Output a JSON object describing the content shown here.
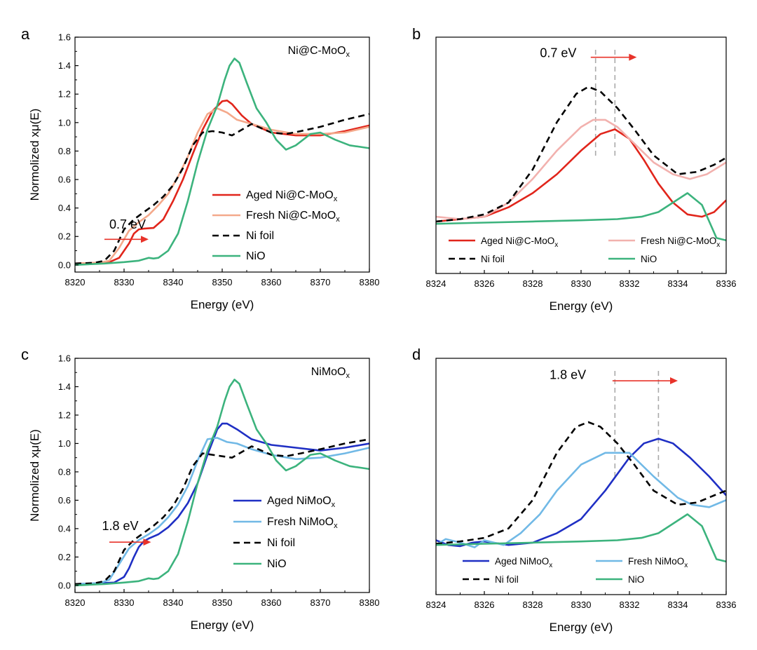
{
  "chart_data": [
    {
      "id": "a",
      "panel_label": "a",
      "type": "line",
      "title": "Ni@C-MoOx",
      "title_main": "Ni@C-MoO",
      "title_sub": "x",
      "xlabel": "Energy (eV)",
      "ylabel": "Normolized xμ(E)",
      "xlim": [
        8320,
        8380
      ],
      "ylim": [
        -0.05,
        1.6
      ],
      "xticks": [
        "8320",
        "8330",
        "8340",
        "8350",
        "8360",
        "8370",
        "8380"
      ],
      "yticks": [
        "0.0",
        "0.2",
        "0.4",
        "0.6",
        "0.8",
        "1.0",
        "1.2",
        "1.4",
        "1.6"
      ],
      "annotation": {
        "text": "0.7 eV",
        "color": "#e8332a",
        "x": 8327,
        "y": 0.255,
        "arrow_x": [
          8326,
          8335
        ],
        "arrow_y": 0.18
      },
      "series": [
        {
          "name": "Aged Ni@C-MoOx",
          "label_main": "Aged Ni@C-MoO",
          "label_sub": "x",
          "color": "#e1251b",
          "dash": false,
          "x": [
            8320,
            8325,
            8327,
            8329,
            8331,
            8332,
            8333,
            8334,
            8336,
            8338,
            8340,
            8342,
            8344,
            8346,
            8348,
            8350,
            8351,
            8352,
            8354,
            8356,
            8360,
            8365,
            8370,
            8375,
            8380
          ],
          "y": [
            0.01,
            0.015,
            0.02,
            0.05,
            0.15,
            0.22,
            0.25,
            0.255,
            0.26,
            0.32,
            0.45,
            0.6,
            0.78,
            0.95,
            1.08,
            1.15,
            1.155,
            1.13,
            1.05,
            0.99,
            0.93,
            0.91,
            0.91,
            0.94,
            0.98
          ]
        },
        {
          "name": "Fresh Ni@C-MoOx",
          "label_main": "Fresh Ni@C-MoO",
          "label_sub": "x",
          "color": "#f4a98b",
          "dash": false,
          "x": [
            8320,
            8325,
            8327,
            8329,
            8331,
            8333,
            8335,
            8337,
            8339,
            8341,
            8343,
            8345,
            8347,
            8349,
            8351,
            8353,
            8356,
            8360,
            8365,
            8370,
            8375,
            8380
          ],
          "y": [
            0.01,
            0.015,
            0.03,
            0.12,
            0.24,
            0.3,
            0.35,
            0.42,
            0.5,
            0.62,
            0.76,
            0.93,
            1.06,
            1.1,
            1.07,
            1.02,
            0.99,
            0.95,
            0.92,
            0.92,
            0.93,
            0.97
          ]
        },
        {
          "name": "Ni foil",
          "label_main": "Ni foil",
          "label_sub": "",
          "color": "#000000",
          "dash": true,
          "x": [
            8320,
            8324,
            8326,
            8328,
            8330,
            8332,
            8334,
            8336,
            8338,
            8340,
            8342,
            8344,
            8346,
            8348,
            8350,
            8352,
            8354,
            8356,
            8358,
            8360,
            8363,
            8366,
            8370,
            8375,
            8380
          ],
          "y": [
            0.01,
            0.015,
            0.03,
            0.1,
            0.25,
            0.32,
            0.37,
            0.42,
            0.48,
            0.56,
            0.68,
            0.84,
            0.93,
            0.94,
            0.93,
            0.91,
            0.95,
            0.99,
            0.96,
            0.93,
            0.92,
            0.94,
            0.97,
            1.02,
            1.06
          ]
        },
        {
          "name": "NiO",
          "label_main": "NiO",
          "label_sub": "",
          "color": "#3cb37d",
          "dash": false,
          "x": [
            8320,
            8326,
            8330,
            8333,
            8335,
            8336,
            8337,
            8339,
            8341,
            8343,
            8345,
            8347,
            8349,
            8350.5,
            8351.5,
            8352.5,
            8353.5,
            8355,
            8357,
            8359,
            8361,
            8363,
            8365,
            8368,
            8370,
            8373,
            8376,
            8380
          ],
          "y": [
            0.0,
            0.01,
            0.02,
            0.03,
            0.05,
            0.045,
            0.05,
            0.1,
            0.22,
            0.45,
            0.72,
            0.95,
            1.12,
            1.3,
            1.4,
            1.45,
            1.42,
            1.28,
            1.1,
            1.0,
            0.88,
            0.81,
            0.84,
            0.92,
            0.93,
            0.88,
            0.84,
            0.82
          ]
        }
      ]
    },
    {
      "id": "b",
      "panel_label": "b",
      "type": "line",
      "xlabel": "Energy (eV)",
      "xlim": [
        8324,
        8336
      ],
      "ylim": [
        0,
        1
      ],
      "xticks": [
        "8324",
        "8326",
        "8328",
        "8330",
        "8332",
        "8334",
        "8336"
      ],
      "vlines": [
        8330.6,
        8331.4
      ],
      "annotation": {
        "text": "0.7 eV",
        "color": "#e8332a",
        "x": 8328.3,
        "y": 0.915,
        "arrow_x": [
          8330.4,
          8332.3
        ],
        "arrow_y": 0.915
      },
      "series": [
        {
          "name": "Aged Ni@C-MoOx",
          "label_main": "Aged Ni@C-MoO",
          "label_sub": "x",
          "color": "#e1251b",
          "dash": false,
          "x": [
            8324,
            8325,
            8326,
            8327,
            8328,
            8329,
            8330,
            8330.8,
            8331.4,
            8332,
            8332.6,
            8333.2,
            8333.8,
            8334.4,
            8335,
            8335.5,
            8336
          ],
          "y": [
            0.22,
            0.23,
            0.24,
            0.28,
            0.34,
            0.42,
            0.52,
            0.59,
            0.61,
            0.57,
            0.48,
            0.38,
            0.3,
            0.25,
            0.24,
            0.26,
            0.31
          ]
        },
        {
          "name": "Fresh Ni@C-MoOx",
          "label_main": "Fresh Ni@C-MoO",
          "label_sub": "x",
          "color": "#f2b1ae",
          "dash": false,
          "x": [
            8324,
            8325,
            8326,
            8327,
            8328,
            8329,
            8330,
            8330.5,
            8331,
            8331.5,
            8332,
            8333,
            8333.8,
            8334.5,
            8335.2,
            8336
          ],
          "y": [
            0.24,
            0.23,
            0.24,
            0.3,
            0.4,
            0.52,
            0.62,
            0.65,
            0.65,
            0.62,
            0.57,
            0.47,
            0.42,
            0.4,
            0.42,
            0.47
          ]
        },
        {
          "name": "Ni foil",
          "label_main": "Ni foil",
          "label_sub": "",
          "color": "#000000",
          "dash": true,
          "x": [
            8324,
            8325,
            8326,
            8327,
            8328,
            8329,
            8329.8,
            8330.3,
            8330.8,
            8331.5,
            8332.2,
            8333,
            8334,
            8334.8,
            8335.5,
            8336
          ],
          "y": [
            0.22,
            0.23,
            0.25,
            0.3,
            0.44,
            0.64,
            0.76,
            0.79,
            0.77,
            0.7,
            0.61,
            0.5,
            0.42,
            0.43,
            0.46,
            0.49
          ]
        },
        {
          "name": "NiO",
          "label_main": "NiO",
          "label_sub": "",
          "color": "#3cb37d",
          "dash": false,
          "x": [
            8324,
            8326,
            8328,
            8330,
            8331.5,
            8332.5,
            8333.2,
            8333.8,
            8334.4,
            8335,
            8335.6,
            8336
          ],
          "y": [
            0.21,
            0.215,
            0.22,
            0.225,
            0.23,
            0.24,
            0.26,
            0.3,
            0.34,
            0.29,
            0.15,
            0.14
          ]
        }
      ]
    },
    {
      "id": "c",
      "panel_label": "c",
      "type": "line",
      "title": "NiMoOx",
      "title_main": "NiMoO",
      "title_sub": "x",
      "xlabel": "Energy (eV)",
      "ylabel": "Normolized xμ(E)",
      "xlim": [
        8320,
        8380
      ],
      "ylim": [
        -0.05,
        1.6
      ],
      "xticks": [
        "8320",
        "8330",
        "8340",
        "8350",
        "8360",
        "8370",
        "8380"
      ],
      "yticks": [
        "0.0",
        "0.2",
        "0.4",
        "0.6",
        "0.8",
        "1.0",
        "1.2",
        "1.4",
        "1.6"
      ],
      "annotation": {
        "text": "1.8 eV",
        "color": "#e8332a",
        "x": 8325.5,
        "y": 0.39,
        "arrow_x": [
          8327,
          8335.5
        ],
        "arrow_y": 0.305
      },
      "series": [
        {
          "name": "Aged NiMoOx",
          "label_main": "Aged NiMoO",
          "label_sub": "x",
          "color": "#1f2fc4",
          "dash": false,
          "x": [
            8320,
            8325,
            8328,
            8330,
            8331,
            8332,
            8333,
            8334,
            8335,
            8337,
            8339,
            8341,
            8343,
            8345,
            8347,
            8349,
            8350,
            8351,
            8353,
            8356,
            8360,
            8365,
            8370,
            8375,
            8380
          ],
          "y": [
            0.01,
            0.015,
            0.02,
            0.06,
            0.12,
            0.2,
            0.27,
            0.31,
            0.33,
            0.36,
            0.41,
            0.48,
            0.58,
            0.72,
            0.92,
            1.1,
            1.14,
            1.14,
            1.1,
            1.03,
            0.99,
            0.97,
            0.95,
            0.97,
            1.0
          ]
        },
        {
          "name": "Fresh NiMoOx",
          "label_main": "Fresh NiMoO",
          "label_sub": "x",
          "color": "#71b9e6",
          "dash": false,
          "x": [
            8320,
            8325,
            8327,
            8329,
            8331,
            8333,
            8335,
            8337,
            8339,
            8341,
            8343,
            8345,
            8347,
            8349,
            8351,
            8353,
            8356,
            8360,
            8365,
            8370,
            8375,
            8380
          ],
          "y": [
            0.01,
            0.015,
            0.04,
            0.15,
            0.26,
            0.32,
            0.36,
            0.41,
            0.48,
            0.57,
            0.7,
            0.88,
            1.03,
            1.04,
            1.01,
            1.0,
            0.96,
            0.92,
            0.89,
            0.9,
            0.93,
            0.97
          ]
        },
        {
          "name": "Ni foil",
          "label_main": "Ni foil",
          "label_sub": "",
          "color": "#000000",
          "dash": true,
          "x": [
            8320,
            8324,
            8326,
            8328,
            8330,
            8332,
            8334,
            8336,
            8338,
            8340,
            8342,
            8344,
            8346,
            8348,
            8350,
            8352,
            8354,
            8356,
            8358,
            8360,
            8363,
            8366,
            8370,
            8375,
            8380
          ],
          "y": [
            0.01,
            0.015,
            0.03,
            0.1,
            0.25,
            0.32,
            0.37,
            0.42,
            0.48,
            0.56,
            0.68,
            0.84,
            0.93,
            0.92,
            0.91,
            0.9,
            0.94,
            0.98,
            0.95,
            0.92,
            0.91,
            0.93,
            0.96,
            1.0,
            1.03
          ]
        },
        {
          "name": "NiO",
          "label_main": "NiO",
          "label_sub": "",
          "color": "#3cb37d",
          "dash": false,
          "x": [
            8320,
            8326,
            8330,
            8333,
            8335,
            8336,
            8337,
            8339,
            8341,
            8343,
            8345,
            8347,
            8349,
            8350.5,
            8351.5,
            8352.5,
            8353.5,
            8355,
            8357,
            8359,
            8361,
            8363,
            8365,
            8368,
            8370,
            8373,
            8376,
            8380
          ],
          "y": [
            0.0,
            0.01,
            0.02,
            0.03,
            0.05,
            0.045,
            0.05,
            0.1,
            0.22,
            0.45,
            0.72,
            0.95,
            1.12,
            1.3,
            1.4,
            1.45,
            1.42,
            1.28,
            1.1,
            1.0,
            0.88,
            0.81,
            0.84,
            0.92,
            0.93,
            0.88,
            0.84,
            0.82
          ]
        }
      ]
    },
    {
      "id": "d",
      "panel_label": "d",
      "type": "line",
      "xlabel": "Energy (eV)",
      "xlim": [
        8324,
        8336
      ],
      "ylim": [
        0,
        1
      ],
      "xticks": [
        "8324",
        "8326",
        "8328",
        "8330",
        "8332",
        "8334",
        "8336"
      ],
      "vlines": [
        8331.4,
        8333.2
      ],
      "annotation": {
        "text": "1.8 eV",
        "color": "#e8332a",
        "x": 8328.7,
        "y": 0.912,
        "arrow_x": [
          8331.3,
          8334.0
        ],
        "arrow_y": 0.905
      },
      "series": [
        {
          "name": "Aged NiMoOx",
          "label_main": "Aged NiMoO",
          "label_sub": "x",
          "color": "#1f2fc4",
          "dash": false,
          "x": [
            8324,
            8324.5,
            8325,
            8325.5,
            8326,
            8327,
            8328,
            8329,
            8330,
            8331,
            8332,
            8332.6,
            8333.2,
            8333.8,
            8334.5,
            8335.3,
            8336
          ],
          "y": [
            0.23,
            0.21,
            0.205,
            0.22,
            0.225,
            0.21,
            0.22,
            0.26,
            0.32,
            0.44,
            0.58,
            0.64,
            0.66,
            0.64,
            0.58,
            0.5,
            0.42
          ]
        },
        {
          "name": "Fresh NiMoOx",
          "label_main": "Fresh NiMoO",
          "label_sub": "x",
          "color": "#71b9e6",
          "dash": false,
          "x": [
            8324,
            8324.4,
            8325,
            8325.6,
            8326,
            8326.8,
            8327.5,
            8328.3,
            8329,
            8330,
            8331,
            8332,
            8333,
            8334,
            8334.6,
            8335.3,
            8336
          ],
          "y": [
            0.21,
            0.235,
            0.22,
            0.2,
            0.23,
            0.21,
            0.26,
            0.34,
            0.44,
            0.55,
            0.6,
            0.6,
            0.5,
            0.41,
            0.38,
            0.37,
            0.4
          ]
        },
        {
          "name": "Ni foil",
          "label_main": "Ni foil",
          "label_sub": "",
          "color": "#000000",
          "dash": true,
          "x": [
            8324,
            8325,
            8326,
            8327,
            8328,
            8329,
            8329.8,
            8330.3,
            8330.8,
            8331.5,
            8332.2,
            8333,
            8334,
            8334.8,
            8335.5,
            8336
          ],
          "y": [
            0.215,
            0.225,
            0.24,
            0.28,
            0.4,
            0.6,
            0.71,
            0.73,
            0.71,
            0.64,
            0.55,
            0.44,
            0.38,
            0.39,
            0.42,
            0.44
          ]
        },
        {
          "name": "NiO",
          "label_main": "NiO",
          "label_sub": "",
          "color": "#3cb37d",
          "dash": false,
          "x": [
            8324,
            8326,
            8328,
            8330,
            8331.5,
            8332.5,
            8333.2,
            8333.8,
            8334.4,
            8335,
            8335.6,
            8336
          ],
          "y": [
            0.21,
            0.215,
            0.22,
            0.225,
            0.23,
            0.24,
            0.26,
            0.3,
            0.34,
            0.29,
            0.15,
            0.14
          ]
        }
      ]
    }
  ]
}
